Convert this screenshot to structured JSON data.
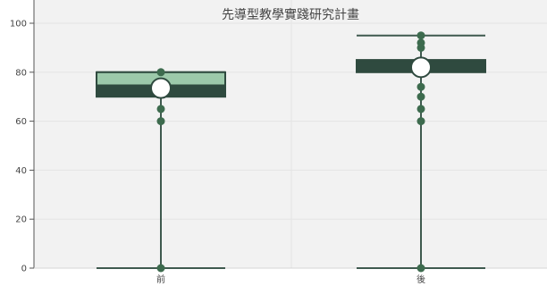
{
  "chart_data": {
    "type": "box",
    "title": "先導型教學實踐研究計畫",
    "xlabel": "",
    "ylabel": "",
    "categories": [
      "前",
      "後"
    ],
    "ylim": [
      0,
      100
    ],
    "yticks": [
      0,
      20,
      40,
      60,
      80,
      100
    ],
    "grid": true,
    "boxes": [
      {
        "category": "前",
        "min": 0,
        "q1": 70,
        "median": 75,
        "q3": 80,
        "max": 80,
        "mean": 73.5,
        "points": [
          0,
          60,
          65,
          80
        ]
      },
      {
        "category": "後",
        "min": 0,
        "q1": 80,
        "median": 85,
        "q3": 85,
        "max": 95,
        "mean": 82,
        "points": [
          0,
          60,
          65,
          70,
          74,
          80,
          90,
          92,
          95
        ]
      }
    ],
    "colors": {
      "plot_bg": "#f2f2f2",
      "grid": "#e4e4e4",
      "axis": "#555555",
      "box_dark": "#2f4a3f",
      "box_light": "#9cc9aa",
      "whisker": "#3f5a4f",
      "point": "#3d6b4e",
      "mean_fill": "#ffffff",
      "mean_stroke": "#2f4a3f"
    }
  }
}
